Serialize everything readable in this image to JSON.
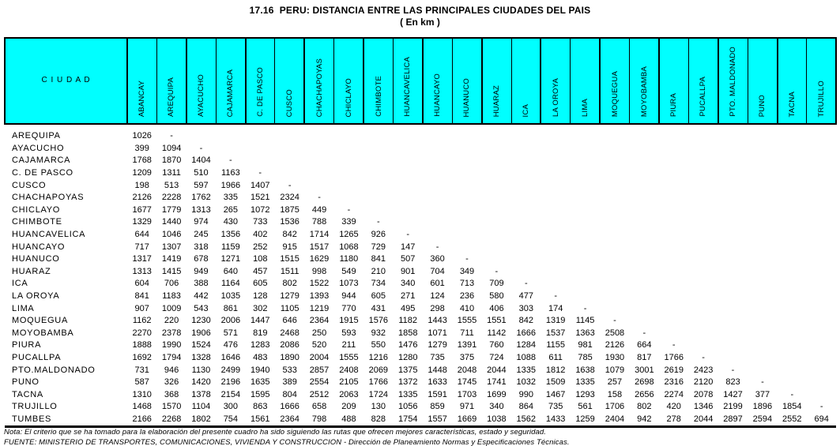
{
  "title": "17.16  PERU: DISTANCIA ENTRE LAS PRINCIPALES CIUDADES DEL PAIS",
  "subtitle": "( En km )",
  "colors": {
    "header_bg": "#00FFFF",
    "border": "#000000",
    "text": "#000000",
    "page_bg": "#FFFFFF"
  },
  "table": {
    "corner_header": "C I U D A D",
    "columns": [
      "ABANCAY",
      "AREQUIPA",
      "AYACUCHO",
      "CAJAMARCA",
      "C. DE PASCO",
      "CUSCO",
      "CHACHAPOYAS",
      "CHICLAYO",
      "CHIMBOTE",
      "HUANCAVELICA",
      "HUANCAYO",
      "HUANUCO",
      "HUARAZ",
      "ICA",
      "LA OROYA",
      "LIMA",
      "MOQUEGUA",
      "MOYOBAMBA",
      "PIURA",
      "PUCALLPA",
      "PTO. MALDONADO",
      "PUNO",
      "TACNA",
      "TRUJILLO"
    ],
    "rows": [
      {
        "city": "AREQUIPA",
        "values": [
          "1026",
          "-"
        ]
      },
      {
        "city": "AYACUCHO",
        "values": [
          "399",
          "1094",
          "-"
        ]
      },
      {
        "city": "CAJAMARCA",
        "values": [
          "1768",
          "1870",
          "1404",
          "-"
        ]
      },
      {
        "city": "C. DE PASCO",
        "values": [
          "1209",
          "1311",
          "510",
          "1163",
          "-"
        ]
      },
      {
        "city": "CUSCO",
        "values": [
          "198",
          "513",
          "597",
          "1966",
          "1407",
          "-"
        ]
      },
      {
        "city": "CHACHAPOYAS",
        "values": [
          "2126",
          "2228",
          "1762",
          "335",
          "1521",
          "2324",
          "-"
        ]
      },
      {
        "city": "CHICLAYO",
        "values": [
          "1677",
          "1779",
          "1313",
          "265",
          "1072",
          "1875",
          "449",
          "-"
        ]
      },
      {
        "city": "CHIMBOTE",
        "values": [
          "1329",
          "1440",
          "974",
          "430",
          "733",
          "1536",
          "788",
          "339",
          "-"
        ]
      },
      {
        "city": "HUANCAVELICA",
        "values": [
          "644",
          "1046",
          "245",
          "1356",
          "402",
          "842",
          "1714",
          "1265",
          "926",
          "-"
        ]
      },
      {
        "city": "HUANCAYO",
        "values": [
          "717",
          "1307",
          "318",
          "1159",
          "252",
          "915",
          "1517",
          "1068",
          "729",
          "147",
          "-"
        ]
      },
      {
        "city": "HUANUCO",
        "values": [
          "1317",
          "1419",
          "678",
          "1271",
          "108",
          "1515",
          "1629",
          "1180",
          "841",
          "507",
          "360",
          "-"
        ]
      },
      {
        "city": "HUARAZ",
        "values": [
          "1313",
          "1415",
          "949",
          "640",
          "457",
          "1511",
          "998",
          "549",
          "210",
          "901",
          "704",
          "349",
          "-"
        ]
      },
      {
        "city": "ICA",
        "values": [
          "604",
          "706",
          "388",
          "1164",
          "605",
          "802",
          "1522",
          "1073",
          "734",
          "340",
          "601",
          "713",
          "709",
          "-"
        ]
      },
      {
        "city": "LA OROYA",
        "values": [
          "841",
          "1183",
          "442",
          "1035",
          "128",
          "1279",
          "1393",
          "944",
          "605",
          "271",
          "124",
          "236",
          "580",
          "477",
          "-"
        ]
      },
      {
        "city": "LIMA",
        "values": [
          "907",
          "1009",
          "543",
          "861",
          "302",
          "1105",
          "1219",
          "770",
          "431",
          "495",
          "298",
          "410",
          "406",
          "303",
          "174",
          "-"
        ]
      },
      {
        "city": "MOQUEGUA",
        "values": [
          "1162",
          "220",
          "1230",
          "2006",
          "1447",
          "646",
          "2364",
          "1915",
          "1576",
          "1182",
          "1443",
          "1555",
          "1551",
          "842",
          "1319",
          "1145",
          "-"
        ]
      },
      {
        "city": "MOYOBAMBA",
        "values": [
          "2270",
          "2378",
          "1906",
          "571",
          "819",
          "2468",
          "250",
          "593",
          "932",
          "1858",
          "1071",
          "711",
          "1142",
          "1666",
          "1537",
          "1363",
          "2508",
          "-"
        ]
      },
      {
        "city": "PIURA",
        "values": [
          "1888",
          "1990",
          "1524",
          "476",
          "1283",
          "2086",
          "520",
          "211",
          "550",
          "1476",
          "1279",
          "1391",
          "760",
          "1284",
          "1155",
          "981",
          "2126",
          "664",
          "-"
        ]
      },
      {
        "city": "PUCALLPA",
        "values": [
          "1692",
          "1794",
          "1328",
          "1646",
          "483",
          "1890",
          "2004",
          "1555",
          "1216",
          "1280",
          "735",
          "375",
          "724",
          "1088",
          "611",
          "785",
          "1930",
          "817",
          "1766",
          "-"
        ]
      },
      {
        "city": "PTO.MALDONADO",
        "values": [
          "731",
          "946",
          "1130",
          "2499",
          "1940",
          "533",
          "2857",
          "2408",
          "2069",
          "1375",
          "1448",
          "2048",
          "2044",
          "1335",
          "1812",
          "1638",
          "1079",
          "3001",
          "2619",
          "2423",
          "-"
        ]
      },
      {
        "city": "PUNO",
        "values": [
          "587",
          "326",
          "1420",
          "2196",
          "1635",
          "389",
          "2554",
          "2105",
          "1766",
          "1372",
          "1633",
          "1745",
          "1741",
          "1032",
          "1509",
          "1335",
          "257",
          "2698",
          "2316",
          "2120",
          "823",
          "-"
        ]
      },
      {
        "city": "TACNA",
        "values": [
          "1310",
          "368",
          "1378",
          "2154",
          "1595",
          "804",
          "2512",
          "2063",
          "1724",
          "1335",
          "1591",
          "1703",
          "1699",
          "990",
          "1467",
          "1293",
          "158",
          "2656",
          "2274",
          "2078",
          "1427",
          "377",
          "-"
        ]
      },
      {
        "city": "TRUJILLO",
        "values": [
          "1468",
          "1570",
          "1104",
          "300",
          "863",
          "1666",
          "658",
          "209",
          "130",
          "1056",
          "859",
          "971",
          "340",
          "864",
          "735",
          "561",
          "1706",
          "802",
          "420",
          "1346",
          "2199",
          "1896",
          "1854",
          "-"
        ]
      },
      {
        "city": "TUMBES",
        "values": [
          "2166",
          "2268",
          "1802",
          "754",
          "1561",
          "2364",
          "798",
          "488",
          "828",
          "1754",
          "1557",
          "1669",
          "1038",
          "1562",
          "1433",
          "1259",
          "2404",
          "942",
          "278",
          "2044",
          "2897",
          "2594",
          "2552",
          "694"
        ]
      }
    ]
  },
  "notes": {
    "nota": "Nota: El criterio que se ha tomado para la elaboración del presente cuadro ha sido siguiendo las rutas que ofrecen mejores características, estado y seguridad.",
    "fuente": "FUENTE: MINISTERIO DE TRANSPORTES, COMUNICACIONES, VIVIENDA Y CONSTRUCCION - Dirección de Planeamiento Normas y Especificaciones Técnicas."
  }
}
